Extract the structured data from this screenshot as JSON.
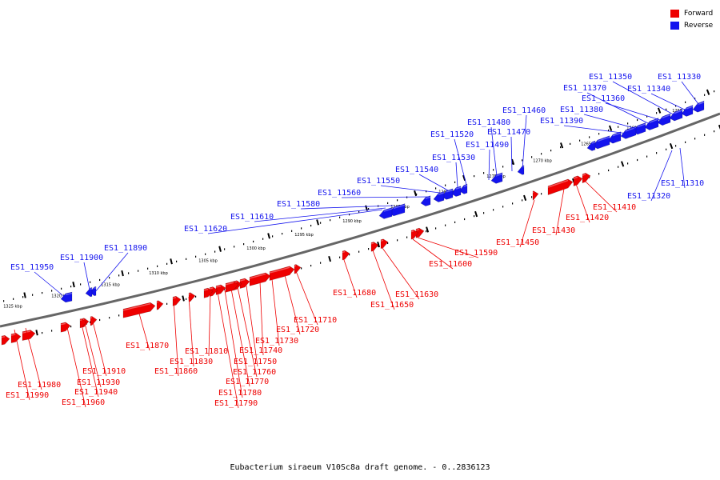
{
  "caption": "Eubacterium siraeum V10Sc8a draft genome. - 0..2836123",
  "legend": {
    "forward": {
      "label": "Forward",
      "color": "#ee0000"
    },
    "reverse": {
      "label": "Reverse",
      "color": "#1414ee"
    }
  },
  "colors": {
    "backbone": "#666666",
    "forward": "#ee0000",
    "reverse": "#1414ee",
    "tick": "#000000"
  },
  "scale_labels": [
    "1255 kbp",
    "1260 kbp",
    "1265 kbp",
    "1270 kbp",
    "1275 kbp",
    "1280 kbp",
    "1285 kbp",
    "1290 kbp",
    "1295 kbp",
    "1300 kbp",
    "1305 kbp",
    "1310 kbp",
    "1315 kbp",
    "1320 kbp",
    "1325 kbp"
  ],
  "reverse_genes": [
    "ES1_11330",
    "ES1_11340",
    "ES1_11350",
    "ES1_11360",
    "ES1_11370",
    "ES1_11380",
    "ES1_11390",
    "ES1_11460",
    "ES1_11470",
    "ES1_11480",
    "ES1_11490",
    "ES1_11520",
    "ES1_11530",
    "ES1_11540",
    "ES1_11550",
    "ES1_11560",
    "ES1_11580",
    "ES1_11610",
    "ES1_11620",
    "ES1_11890",
    "ES1_11900",
    "ES1_11950",
    "ES1_11310",
    "ES1_11320"
  ],
  "forward_genes": [
    "ES1_11410",
    "ES1_11420",
    "ES1_11430",
    "ES1_11450",
    "ES1_11590",
    "ES1_11600",
    "ES1_11630",
    "ES1_11650",
    "ES1_11680",
    "ES1_11710",
    "ES1_11720",
    "ES1_11730",
    "ES1_11740",
    "ES1_11750",
    "ES1_11760",
    "ES1_11770",
    "ES1_11780",
    "ES1_11790",
    "ES1_11810",
    "ES1_11830",
    "ES1_11860",
    "ES1_11870",
    "ES1_11910",
    "ES1_11930",
    "ES1_11940",
    "ES1_11960",
    "ES1_11980",
    "ES1_11990"
  ]
}
